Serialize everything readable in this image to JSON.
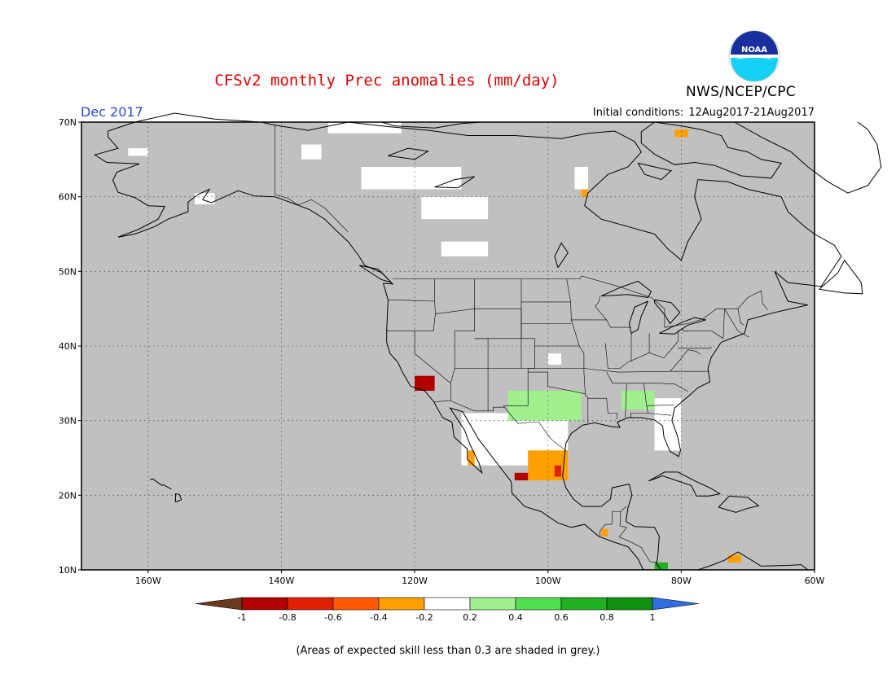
{
  "title": "CFSv2 monthly Prec anomalies (mm/day)",
  "org": "NWS/NCEP/CPC",
  "logo_text": "NOAA",
  "month": "Dec 2017",
  "initial_label": "Initial conditions:",
  "initial_range": "12Aug2017-21Aug2017",
  "note": "(Areas of expected skill less than 0.3 are shaded in grey.)",
  "lat_ticks": [
    {
      "value": 70,
      "label": "70N"
    },
    {
      "value": 60,
      "label": "60N"
    },
    {
      "value": 50,
      "label": "50N"
    },
    {
      "value": 40,
      "label": "40N"
    },
    {
      "value": 30,
      "label": "30N"
    },
    {
      "value": 20,
      "label": "20N"
    },
    {
      "value": 10,
      "label": "10N"
    }
  ],
  "lon_ticks": [
    {
      "value": -160,
      "label": "160W"
    },
    {
      "value": -140,
      "label": "140W"
    },
    {
      "value": -120,
      "label": "120W"
    },
    {
      "value": -100,
      "label": "100W"
    },
    {
      "value": -80,
      "label": "80W"
    },
    {
      "value": -60,
      "label": "60W"
    }
  ],
  "map_extent": {
    "lon_min": -170,
    "lon_max": -60,
    "lat_min": 10,
    "lat_max": 70
  },
  "colors": {
    "skill_mask": "#c0c0c0",
    "coast": "#000000",
    "title": "#e00000",
    "month": "#2a4bd7"
  },
  "colorbar": {
    "labels": [
      "-1",
      "-0.8",
      "-0.6",
      "-0.4",
      "-0.2",
      "0.2",
      "0.4",
      "0.6",
      "0.8",
      "1"
    ],
    "low_arrow": "#6b3a1e",
    "high_arrow": "#2f6fe0",
    "bins": [
      "#b00000",
      "#e02000",
      "#ff5a00",
      "#ffa000",
      "#ffffff",
      "#a0f090",
      "#50e050",
      "#20b020",
      "#109010"
    ]
  },
  "anomaly_regions": [
    {
      "name": "white-north-1",
      "class": "neutral",
      "lon": [
        -133,
        -122
      ],
      "lat": [
        68.5,
        70
      ]
    },
    {
      "name": "white-north-2",
      "class": "neutral",
      "lon": [
        -128,
        -113
      ],
      "lat": [
        61,
        64
      ]
    },
    {
      "name": "white-north-3",
      "class": "neutral",
      "lon": [
        -119,
        -109
      ],
      "lat": [
        57,
        60
      ]
    },
    {
      "name": "white-north-4",
      "class": "neutral",
      "lon": [
        -116,
        -109
      ],
      "lat": [
        52,
        54
      ]
    },
    {
      "name": "white-north-5",
      "class": "neutral",
      "lon": [
        -137,
        -134
      ],
      "lat": [
        65,
        67
      ]
    },
    {
      "name": "white-north-6",
      "class": "neutral",
      "lon": [
        -163,
        -160
      ],
      "lat": [
        65.5,
        66.5
      ]
    },
    {
      "name": "white-alaska",
      "class": "neutral",
      "lon": [
        -153,
        -150
      ],
      "lat": [
        59,
        60.5
      ]
    },
    {
      "name": "white-plains",
      "class": "neutral",
      "lon": [
        -100,
        -98
      ],
      "lat": [
        37.5,
        39
      ]
    },
    {
      "name": "white-mexico",
      "class": "neutral",
      "lon": [
        -113,
        -97
      ],
      "lat": [
        24,
        31
      ]
    },
    {
      "name": "white-florida",
      "class": "neutral",
      "lon": [
        -84,
        -80
      ],
      "lat": [
        26,
        33
      ]
    },
    {
      "name": "white-hudson",
      "class": "neutral",
      "lon": [
        -96,
        -94
      ],
      "lat": [
        61,
        64
      ]
    },
    {
      "name": "green-texas",
      "class": "wet-1",
      "lon": [
        -106,
        -95
      ],
      "lat": [
        30,
        34
      ]
    },
    {
      "name": "green-gulf",
      "class": "wet-1",
      "lon": [
        -89,
        -84
      ],
      "lat": [
        31.5,
        34
      ]
    },
    {
      "name": "green-panama",
      "class": "wet-3",
      "lon": [
        -84,
        -82
      ],
      "lat": [
        10,
        11
      ]
    },
    {
      "name": "orange-mexico",
      "class": "dry-1",
      "lon": [
        -103,
        -97
      ],
      "lat": [
        22,
        26
      ]
    },
    {
      "name": "orange-baja",
      "class": "dry-1",
      "lon": [
        -112,
        -111
      ],
      "lat": [
        24,
        26
      ]
    },
    {
      "name": "orange-guatemala",
      "class": "dry-1",
      "lon": [
        -92,
        -91
      ],
      "lat": [
        14.5,
        15.5
      ]
    },
    {
      "name": "orange-greenland",
      "class": "dry-1",
      "lon": [
        -81,
        -79
      ],
      "lat": [
        68,
        69
      ]
    },
    {
      "name": "orange-hudson",
      "class": "dry-1",
      "lon": [
        -95,
        -94
      ],
      "lat": [
        60,
        61
      ]
    },
    {
      "name": "orange-colombia",
      "class": "dry-1",
      "lon": [
        -73,
        -71
      ],
      "lat": [
        11,
        12
      ]
    },
    {
      "name": "red-socal",
      "class": "dry-3",
      "lon": [
        -120,
        -117
      ],
      "lat": [
        34,
        36
      ]
    },
    {
      "name": "red-mexico",
      "class": "dry-3",
      "lon": [
        -105,
        -103
      ],
      "lat": [
        22,
        23
      ]
    },
    {
      "name": "red-gulf",
      "class": "dry-2",
      "lon": [
        -99,
        -98
      ],
      "lat": [
        22.5,
        24
      ]
    }
  ]
}
